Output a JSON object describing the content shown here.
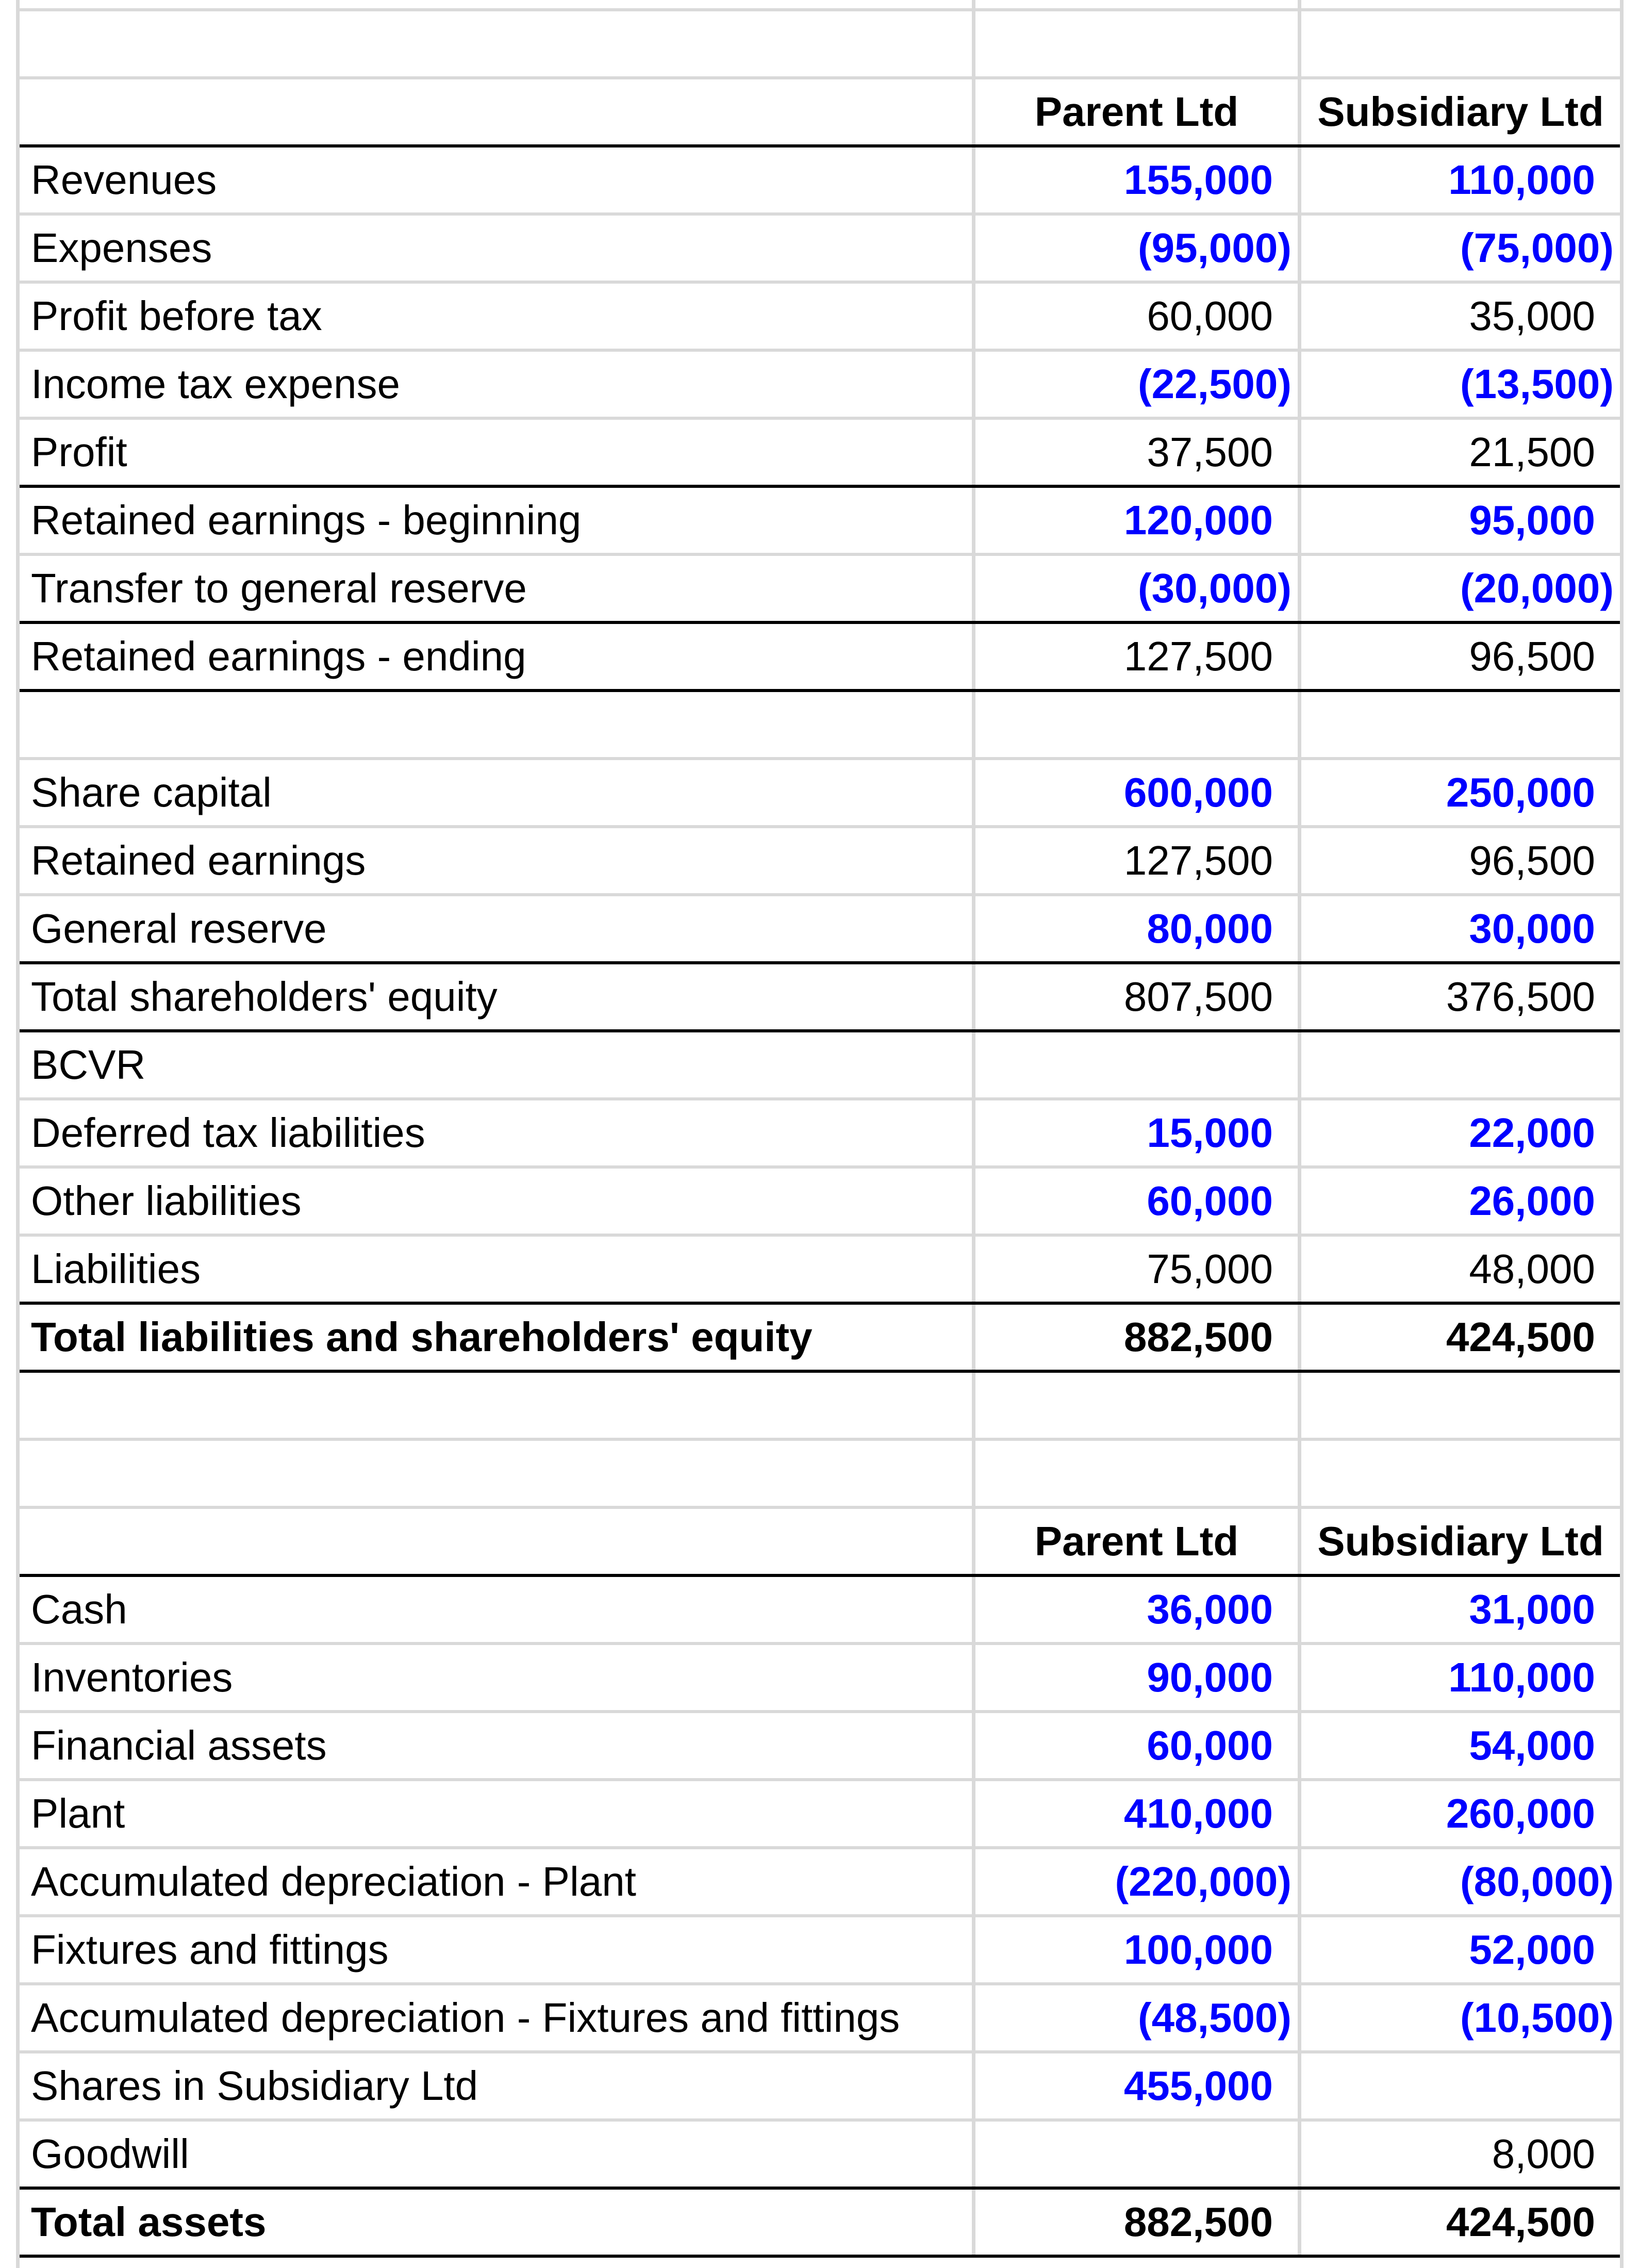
{
  "headers": {
    "parent": "Parent Ltd",
    "subsidiary": "Subsidiary Ltd"
  },
  "colors": {
    "input_blue": "#0000ff",
    "grid": "#d9d9d9",
    "rule": "#000000"
  },
  "rows": [
    {
      "label": "Revenues",
      "parent": "155,000",
      "subsidiary": "110,000"
    },
    {
      "label": "Expenses",
      "parent": "(95,000)",
      "subsidiary": "(75,000)"
    },
    {
      "label": "Profit before tax",
      "parent": "60,000",
      "subsidiary": "35,000"
    },
    {
      "label": "Income tax expense",
      "parent": "(22,500)",
      "subsidiary": "(13,500)"
    },
    {
      "label": "Profit",
      "parent": "37,500",
      "subsidiary": "21,500"
    },
    {
      "label": "Retained earnings - beginning",
      "parent": "120,000",
      "subsidiary": "95,000"
    },
    {
      "label": "Transfer to general reserve",
      "parent": "(30,000)",
      "subsidiary": "(20,000)"
    },
    {
      "label": "Retained earnings - ending",
      "parent": "127,500",
      "subsidiary": "96,500"
    },
    {
      "label": "Share capital",
      "parent": "600,000",
      "subsidiary": "250,000"
    },
    {
      "label": "Retained earnings",
      "parent": "127,500",
      "subsidiary": "96,500"
    },
    {
      "label": "General reserve",
      "parent": "80,000",
      "subsidiary": "30,000"
    },
    {
      "label": "Total shareholders' equity",
      "parent": "807,500",
      "subsidiary": "376,500"
    },
    {
      "label": "BCVR",
      "parent": "",
      "subsidiary": ""
    },
    {
      "label": "Deferred tax liabilities",
      "parent": "15,000",
      "subsidiary": "22,000"
    },
    {
      "label": "Other liabilities",
      "parent": "60,000",
      "subsidiary": "26,000"
    },
    {
      "label": "Liabilities",
      "parent": "75,000",
      "subsidiary": "48,000"
    },
    {
      "label": "Total liabilities and shareholders' equity",
      "parent": "882,500",
      "subsidiary": "424,500"
    },
    {
      "label": "Cash",
      "parent": "36,000",
      "subsidiary": "31,000"
    },
    {
      "label": "Inventories",
      "parent": "90,000",
      "subsidiary": "110,000"
    },
    {
      "label": "Financial assets",
      "parent": "60,000",
      "subsidiary": "54,000"
    },
    {
      "label": "Plant",
      "parent": "410,000",
      "subsidiary": "260,000"
    },
    {
      "label": "Accumulated depreciation - Plant",
      "parent": "(220,000)",
      "subsidiary": "(80,000)"
    },
    {
      "label": "Fixtures and fittings",
      "parent": "100,000",
      "subsidiary": "52,000"
    },
    {
      "label": "Accumulated depreciation - Fixtures and fittings",
      "parent": "(48,500)",
      "subsidiary": "(10,500)"
    },
    {
      "label": "Shares in Subsidiary Ltd",
      "parent": "455,000",
      "subsidiary": ""
    },
    {
      "label": "Goodwill",
      "parent": "",
      "subsidiary": "8,000"
    },
    {
      "label": "Total assets",
      "parent": "882,500",
      "subsidiary": "424,500"
    }
  ]
}
